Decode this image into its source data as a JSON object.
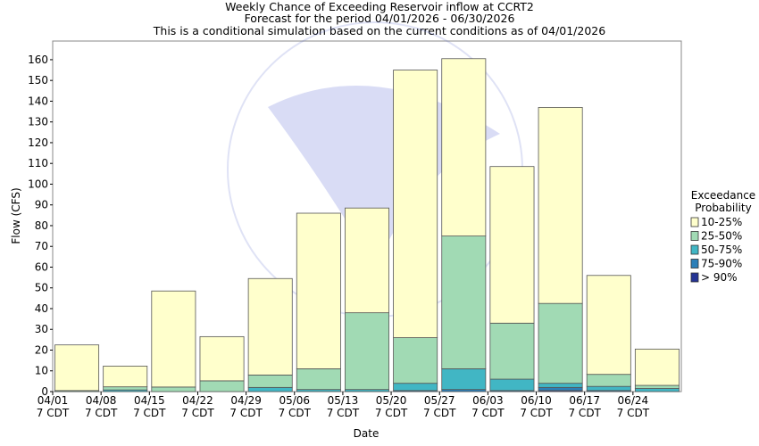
{
  "chart_data": {
    "type": "stacked_bar",
    "title": "Weekly Chance of Exceeding Reservoir inflow at CCRT2",
    "subtitle": "Forecast for the period 04/01/2026 - 06/30/2026",
    "subtitle2": "This is a conditional simulation based on the current conditions as of 04/01/2026",
    "x_label": "Date",
    "y_label": "Flow (CFS)",
    "legend_title": "Exceedance\nProbability",
    "legend_position": "right",
    "categories": [
      "04/01\n7 CDT",
      "04/08\n7 CDT",
      "04/15\n7 CDT",
      "04/22\n7 CDT",
      "04/29\n7 CDT",
      "05/06\n7 CDT",
      "05/13\n7 CDT",
      "05/20\n7 CDT",
      "05/27\n7 CDT",
      "06/03\n7 CDT",
      "06/10\n7 CDT",
      "06/17\n7 CDT",
      "06/24\n7 CDT"
    ],
    "series": [
      {
        "name": "> 90%",
        "color": "#253494",
        "values": [
          0,
          0,
          0,
          0,
          0,
          0,
          0,
          0,
          0,
          0,
          0.5,
          0,
          0
        ]
      },
      {
        "name": "75-90%",
        "color": "#2c7fb8",
        "values": [
          0,
          0,
          0,
          0,
          0,
          0,
          0,
          0.5,
          1,
          0.5,
          1.5,
          0.5,
          0
        ]
      },
      {
        "name": "50-75%",
        "color": "#41b6c4",
        "values": [
          0,
          0.8,
          0,
          0,
          2,
          1,
          1,
          3.5,
          10,
          5.5,
          2,
          2,
          1.5
        ]
      },
      {
        "name": "25-50%",
        "color": "#a1dab4",
        "values": [
          0.5,
          1.5,
          2.2,
          5.2,
          6,
          10,
          37,
          22,
          64,
          27,
          38.5,
          5.8,
          1.5
        ]
      },
      {
        "name": "10-25%",
        "color": "#ffffcc",
        "values": [
          22,
          10,
          46.3,
          21.3,
          46.5,
          75,
          50.5,
          129,
          85.5,
          75.5,
          94.5,
          47.7,
          17.5
        ]
      }
    ],
    "ylim": [
      0,
      169
    ],
    "yticks": [
      0,
      10,
      20,
      30,
      40,
      50,
      60,
      70,
      80,
      90,
      100,
      110,
      120,
      130,
      140,
      150,
      160
    ],
    "grid": false
  }
}
